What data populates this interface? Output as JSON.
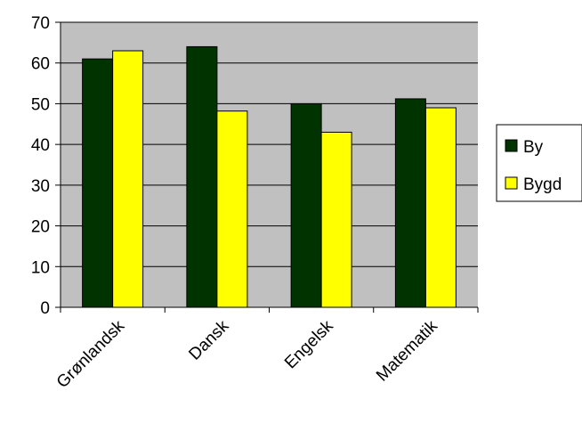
{
  "chart_data": {
    "type": "bar",
    "categories": [
      "Grønlandsk",
      "Dansk",
      "Engelsk",
      "Matematik"
    ],
    "series": [
      {
        "name": "By",
        "values": [
          61,
          64,
          50,
          51.2
        ],
        "color": "#003300"
      },
      {
        "name": "Bygd",
        "values": [
          63,
          48.2,
          43,
          49
        ],
        "color": "#ffff00"
      }
    ],
    "title": "",
    "xlabel": "",
    "ylabel": "",
    "ylim": [
      0,
      70
    ],
    "yticks": [
      0,
      10,
      20,
      30,
      40,
      50,
      60,
      70
    ],
    "grid": true,
    "legend_position": "right",
    "plot_background": "#c0c0c0"
  }
}
